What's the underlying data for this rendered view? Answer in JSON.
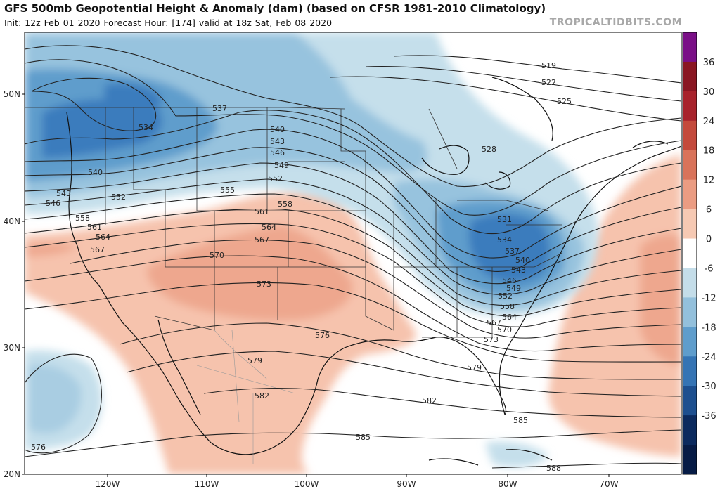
{
  "header": {
    "title": "GFS 500mb Geopotential Height & Anomaly (dam) (based on CFSR 1981-2010 Climatology)",
    "subtitle": "Init: 12z Feb 01 2020   Forecast Hour: [174]   valid at 18z Sat, Feb 08 2020",
    "brand": "TROPICALTIDBITS.COM"
  },
  "axes": {
    "longitude_labels": [
      "120W",
      "110W",
      "100W",
      "90W",
      "80W",
      "70W"
    ],
    "latitude_labels": [
      "50N",
      "40N",
      "30N",
      "20N"
    ]
  },
  "colorbar": {
    "labels": [
      "36",
      "30",
      "24",
      "18",
      "12",
      "6",
      "0",
      "-6",
      "-12",
      "-18",
      "-24",
      "-30",
      "-36"
    ],
    "colors": [
      "#7a0f87",
      "#8a1622",
      "#a8232c",
      "#c44a3c",
      "#d9735a",
      "#eb9c82",
      "#f6c9b3",
      "#ffffff",
      "#c4dde9",
      "#93c0dc",
      "#5f9dcc",
      "#3574b4",
      "#1d4f8f",
      "#0b2a5e",
      "#061b45"
    ]
  },
  "contours": {
    "labels": [
      "519",
      "522",
      "525",
      "528",
      "531",
      "534",
      "537",
      "540",
      "543",
      "546",
      "549",
      "552",
      "555",
      "558",
      "561",
      "564",
      "567",
      "570",
      "573",
      "576",
      "579",
      "582",
      "585",
      "588"
    ]
  },
  "colors": {
    "cold_anomaly": "#5f9dcc",
    "warm_anomaly": "#f3b49b",
    "contour": "#222222",
    "coast": "#111111"
  }
}
